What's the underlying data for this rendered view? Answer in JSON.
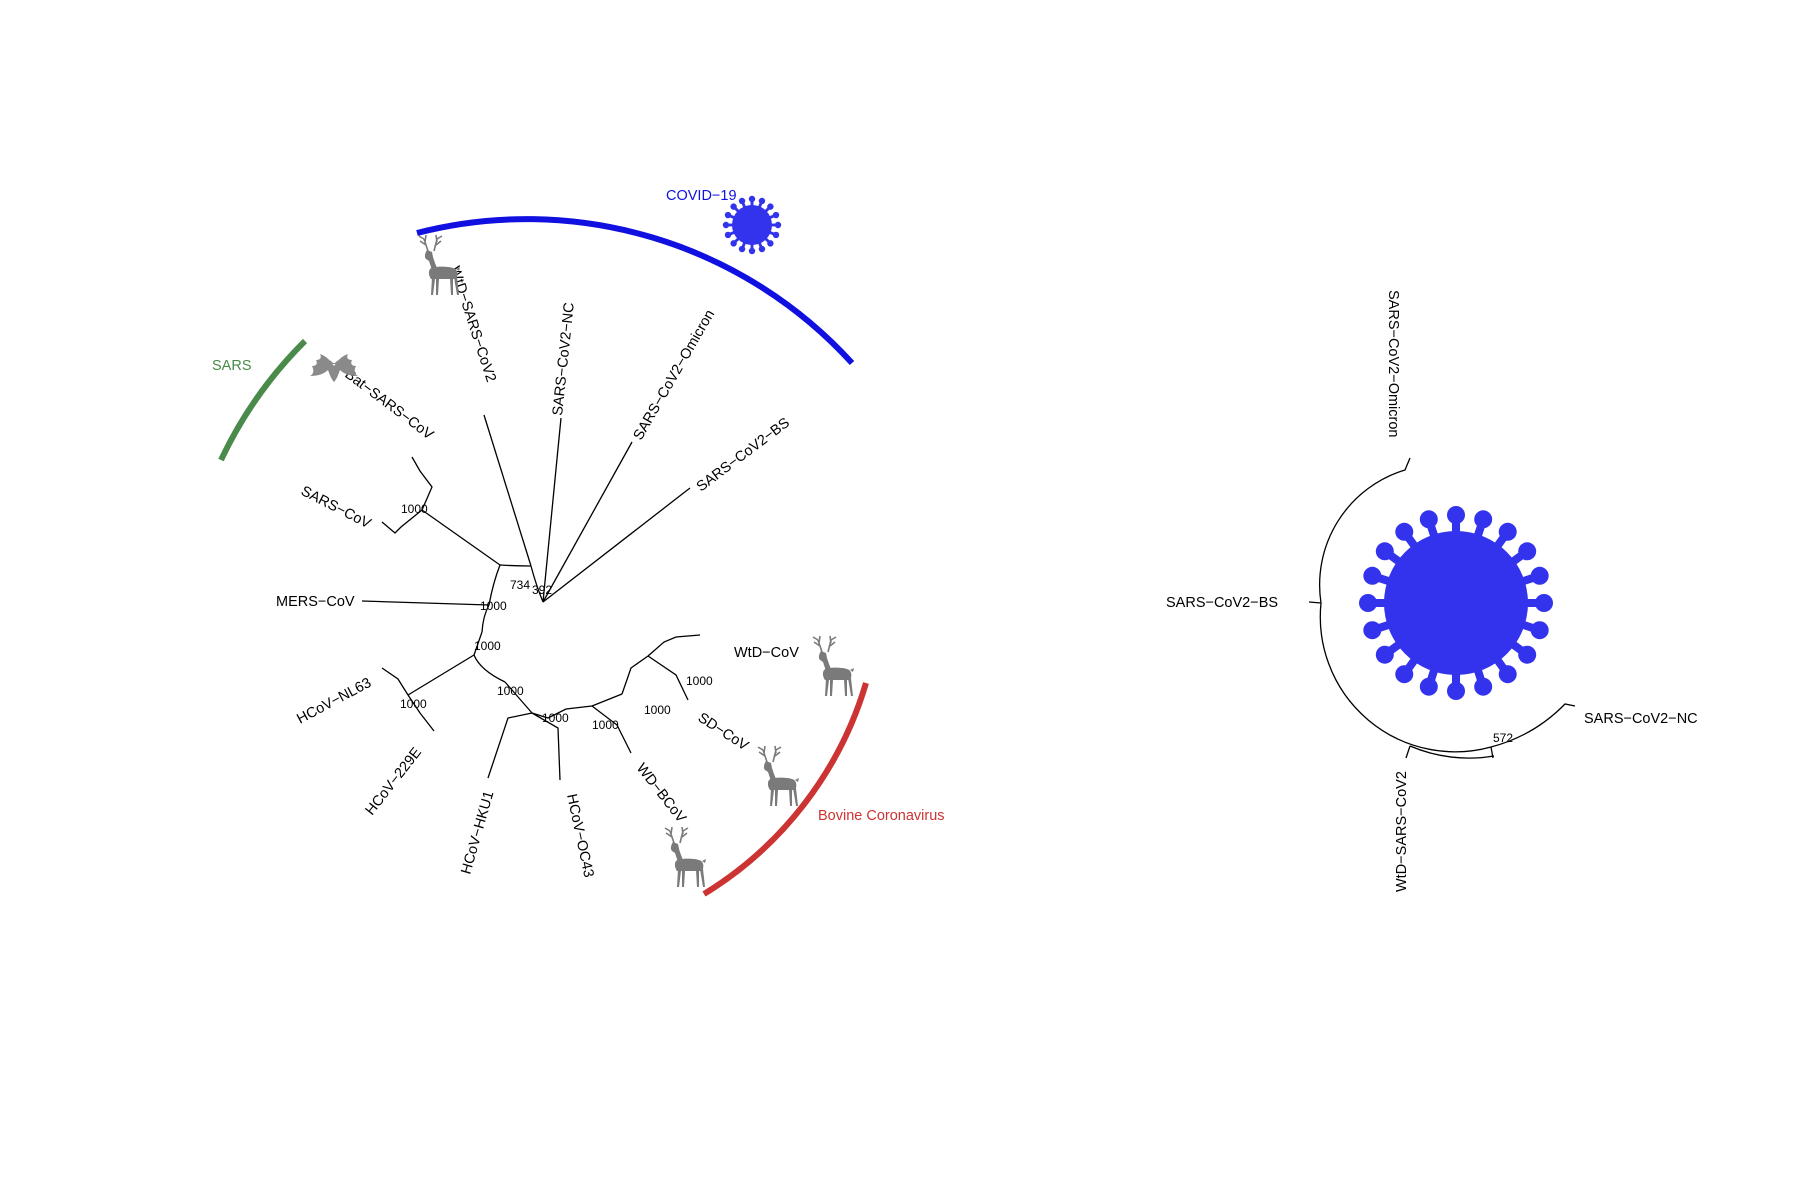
{
  "colors": {
    "covid": "#1010e0",
    "sars": "#4a8a4a",
    "bovine": "#cc3333",
    "animal_icon": "#7a7a7a",
    "virus_icon": "#3333ee"
  },
  "left_tree": {
    "clades": {
      "covid": "COVID−19",
      "sars": "SARS",
      "bovine": "Bovine Coronavirus"
    },
    "tips": {
      "wtd_sars_cov2": "WtD−SARS−CoV2",
      "sars_cov2_nc": "SARS−CoV2−NC",
      "sars_cov2_omicron": "SARS−CoV2−Omicron",
      "sars_cov2_bs": "SARS−CoV2−BS",
      "bat_sars_cov": "Bat−SARS−CoV",
      "sars_cov": "SARS−CoV",
      "mers_cov": "MERS−CoV",
      "hcov_nl63": "HCoV−NL63",
      "hcov_229e": "HCoV−229E",
      "hcov_hku1": "HCoV−HKU1",
      "hcov_oc43": "HCoV−OC43",
      "wd_bcov": "WD−BCoV",
      "sd_cov": "SD−CoV",
      "wtd_cov": "WtD−CoV"
    },
    "bootstrap": {
      "sars_node": "1000",
      "node_734": "734",
      "node_392": "392",
      "mers_node": "1000",
      "inner_node": "1000",
      "alpha_node": "1000",
      "beta_node": "1000",
      "embeco_node": "1000",
      "bovine_node": "1000",
      "deer_node": "1000",
      "wtd_node": "1000"
    }
  },
  "right_tree": {
    "tips": {
      "omicron": "SARS−CoV2−Omicron",
      "bs": "SARS−CoV2−BS",
      "nc": "SARS−CoV2−NC",
      "wtd": "WtD−SARS−CoV2"
    },
    "bootstrap": {
      "node_572": "572"
    }
  },
  "icons": [
    "deer-icon",
    "bat-icon",
    "coronavirus-icon"
  ]
}
